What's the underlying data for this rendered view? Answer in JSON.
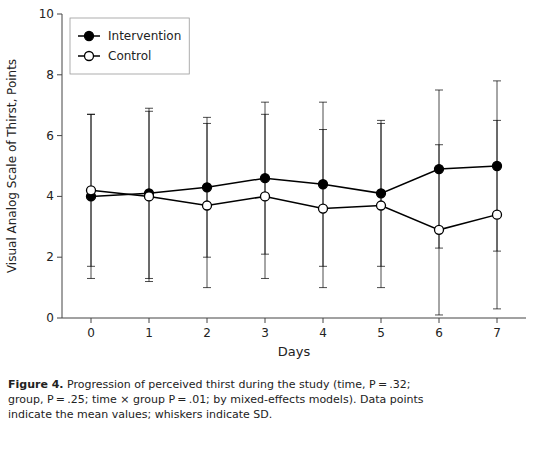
{
  "chart_data": {
    "type": "line",
    "xlabel": "Days",
    "ylabel": "Visual Analog Scale of Thirst, Points",
    "x": [
      0,
      1,
      2,
      3,
      4,
      5,
      6,
      7
    ],
    "xlim": [
      -0.5,
      7.5
    ],
    "xticks": [
      0,
      1,
      2,
      3,
      4,
      5,
      6,
      7
    ],
    "ylim": [
      0,
      10
    ],
    "yticks": [
      0,
      2,
      4,
      6,
      8,
      10
    ],
    "grid": false,
    "legend": "upper left",
    "series": [
      {
        "name": "Intervention",
        "color": "#000000",
        "marker": "circle",
        "line_style": "solid",
        "values": [
          4.0,
          4.1,
          4.3,
          4.6,
          4.4,
          4.1,
          4.9,
          5.0
        ],
        "errors": [
          2.7,
          2.8,
          2.3,
          2.5,
          2.7,
          2.4,
          2.6,
          2.8
        ]
      },
      {
        "name": "Control",
        "color": "#000000",
        "marker": "circle-open",
        "line_style": "solid",
        "values": [
          4.2,
          4.0,
          3.7,
          4.0,
          3.6,
          3.7,
          2.9,
          3.4
        ],
        "errors": [
          2.5,
          2.8,
          2.7,
          2.7,
          2.6,
          2.7,
          2.8,
          3.1
        ]
      }
    ],
    "caption_label": "Figure 4.",
    "caption": " Progression of perceived thirst during the study (time, ​P​ = .32;\ngroup, ​P​ = .25; time × group ​P​ = .01; by mixed-effects models). Data points\nindicate the mean values; whiskers indicate SD."
  }
}
